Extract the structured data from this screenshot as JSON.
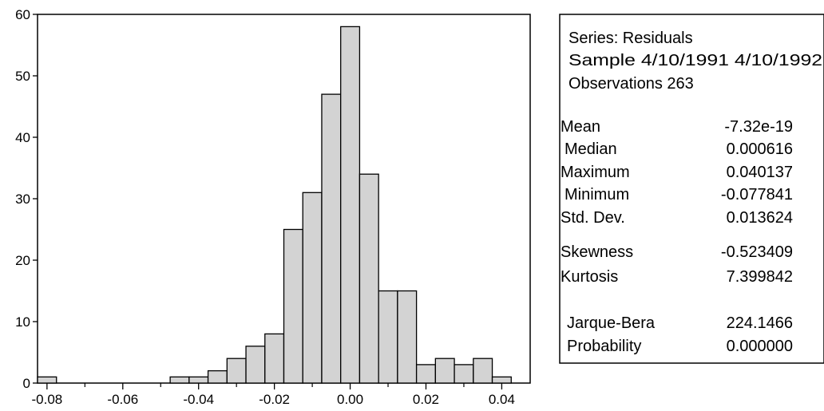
{
  "chart_data": {
    "type": "bar",
    "title": "",
    "xlabel": "",
    "ylabel": "",
    "bin_width": 0.005,
    "xlim": [
      -0.0825,
      0.0475
    ],
    "ylim": [
      0,
      60
    ],
    "grid": false,
    "bar_color": "#d3d3d3",
    "bar_edge_color": "#000000",
    "bins": [
      {
        "x0": -0.0825,
        "x1": -0.0775,
        "count": 1
      },
      {
        "x0": -0.0475,
        "x1": -0.0425,
        "count": 1
      },
      {
        "x0": -0.0425,
        "x1": -0.0375,
        "count": 1
      },
      {
        "x0": -0.0375,
        "x1": -0.0325,
        "count": 2
      },
      {
        "x0": -0.0325,
        "x1": -0.0275,
        "count": 4
      },
      {
        "x0": -0.0275,
        "x1": -0.0225,
        "count": 6
      },
      {
        "x0": -0.0225,
        "x1": -0.0175,
        "count": 8
      },
      {
        "x0": -0.0175,
        "x1": -0.0125,
        "count": 25
      },
      {
        "x0": -0.0125,
        "x1": -0.0075,
        "count": 31
      },
      {
        "x0": -0.0075,
        "x1": -0.0025,
        "count": 47
      },
      {
        "x0": -0.0025,
        "x1": 0.0025,
        "count": 58
      },
      {
        "x0": 0.0025,
        "x1": 0.0075,
        "count": 34
      },
      {
        "x0": 0.0075,
        "x1": 0.0125,
        "count": 15
      },
      {
        "x0": 0.0125,
        "x1": 0.0175,
        "count": 15
      },
      {
        "x0": 0.0175,
        "x1": 0.0225,
        "count": 3
      },
      {
        "x0": 0.0225,
        "x1": 0.0275,
        "count": 4
      },
      {
        "x0": 0.0275,
        "x1": 0.0325,
        "count": 3
      },
      {
        "x0": 0.0325,
        "x1": 0.0375,
        "count": 4
      },
      {
        "x0": 0.0375,
        "x1": 0.0425,
        "count": 1
      }
    ],
    "x_ticks": [
      {
        "value": -0.08,
        "label": "-0.08"
      },
      {
        "value": -0.06,
        "label": "-0.06"
      },
      {
        "value": -0.04,
        "label": "-0.04"
      },
      {
        "value": -0.02,
        "label": "-0.02"
      },
      {
        "value": 0.0,
        "label": "0.00"
      },
      {
        "value": 0.02,
        "label": "0.02"
      },
      {
        "value": 0.04,
        "label": "0.04"
      }
    ],
    "y_ticks": [
      {
        "value": 0,
        "label": "0"
      },
      {
        "value": 10,
        "label": "10"
      },
      {
        "value": 20,
        "label": "20"
      },
      {
        "value": 30,
        "label": "30"
      },
      {
        "value": 40,
        "label": "40"
      },
      {
        "value": 50,
        "label": "50"
      },
      {
        "value": 60,
        "label": "60"
      }
    ]
  },
  "stats": {
    "series": "Series: Residuals",
    "sample": "Sample 4/10/1991 4/10/1992",
    "observations": "Observations 263",
    "rows": [
      {
        "label": "Mean",
        "value": "-7.32e-19"
      },
      {
        "label": "Median",
        "value": "0.000616"
      },
      {
        "label": "Maximum",
        "value": "0.040137"
      },
      {
        "label": "Minimum",
        "value": "-0.077841"
      },
      {
        "label": "Std. Dev.",
        "value": "0.013624"
      },
      {
        "label": "Skewness",
        "value": "-0.523409"
      },
      {
        "label": "Kurtosis",
        "value": "7.399842"
      }
    ],
    "test_rows": [
      {
        "label": "Jarque-Bera",
        "value": "224.1466"
      },
      {
        "label": "Probability",
        "value": "0.000000"
      }
    ]
  }
}
